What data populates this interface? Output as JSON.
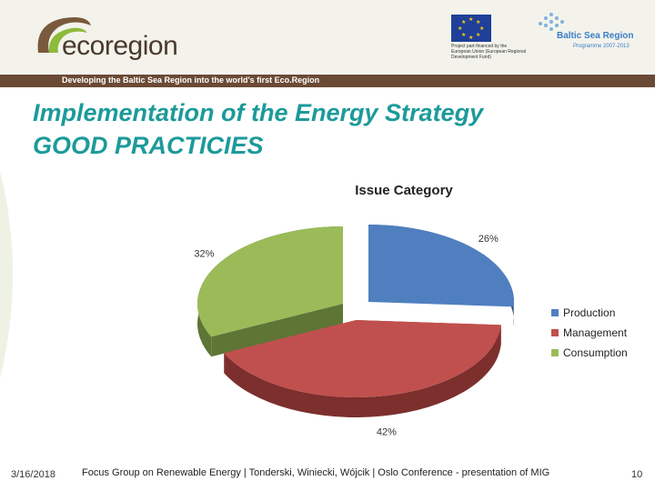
{
  "header": {
    "logo_text": "ecoregion",
    "eu_caption": "Project part-financed by the European Union (European Regional Development Fund)",
    "baltic_title": "Baltic Sea Region",
    "baltic_subtitle": "Programme 2007-2013",
    "tagline": "Developing the Baltic Sea Region into the world's first Eco.Region"
  },
  "slide": {
    "title_line1": "Implementation of the Energy Strategy",
    "title_line2": "GOOD PRACTICIES"
  },
  "chart_data": {
    "type": "pie",
    "title": "Issue Category",
    "categories": [
      "Production",
      "Management",
      "Consumption"
    ],
    "values": [
      26,
      42,
      32
    ],
    "labels": [
      "26%",
      "42%",
      "32%"
    ],
    "colors": [
      "#4f7fbf",
      "#c0504d",
      "#9bbb59"
    ],
    "side_colors": [
      "#2e4d78",
      "#7c2f2d",
      "#5e7535"
    ],
    "legend_position": "right",
    "style": "3d-exploded"
  },
  "footer": {
    "date": "3/16/2018",
    "text": "Focus Group on Renewable Energy | Tonderski, Winiecki, Wójcik | Oslo Conference - presentation of MIG",
    "page": "10"
  }
}
